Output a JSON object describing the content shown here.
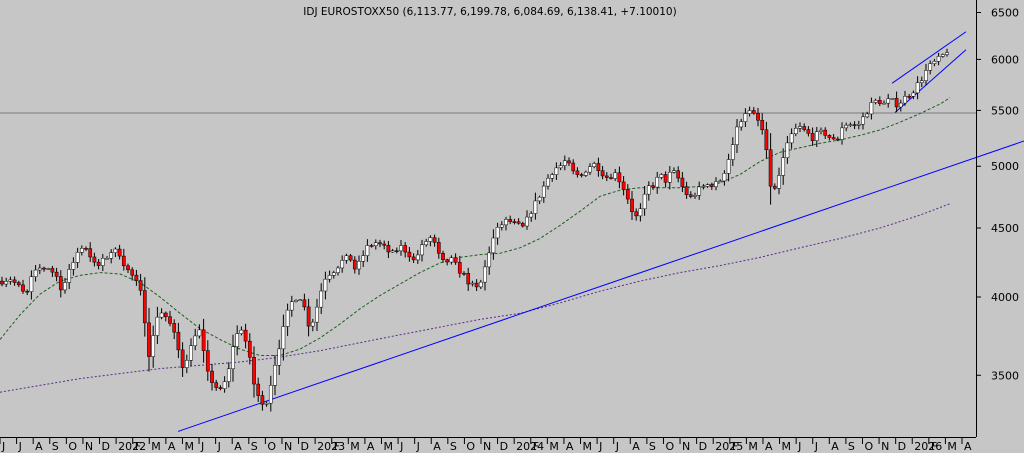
{
  "chart_data": {
    "type": "candlestick",
    "title": "IDJ EUROSTOXX50 (6,113.77, 6,199.78, 6,084.69, 6,138.41, +7.10010)",
    "y_scale": "log",
    "ylim": [
      3150,
      6550
    ],
    "y_ticks": [
      3500,
      4000,
      4500,
      5000,
      5500,
      6000,
      6500
    ],
    "x_axis_labels": [
      "J",
      "J",
      "A",
      "S",
      "O",
      "N",
      "D",
      "2022",
      "F",
      "M",
      "A",
      "M",
      "J",
      "J",
      "A",
      "S",
      "O",
      "N",
      "D",
      "2023",
      "F",
      "M",
      "A",
      "M",
      "J",
      "J",
      "A",
      "S",
      "O",
      "N",
      "D",
      "2024",
      "F",
      "M",
      "A",
      "M",
      "J",
      "J",
      "A",
      "S",
      "O",
      "N",
      "D",
      "2025",
      "F",
      "M",
      "A",
      "M",
      "J",
      "J",
      "A",
      "S",
      "O",
      "N",
      "D",
      "2026",
      "F",
      "M",
      "A"
    ],
    "colors": {
      "background": "#c6c6c6",
      "up_candle_body": "#ffffff",
      "down_candle_body": "#ff0000",
      "wick": "#000000",
      "trend_lines": "#0000ff",
      "ma_short": "#1e5f1e",
      "ma_long": "#5a2a8a",
      "reference_line": "#7a7a7a"
    },
    "reference_level": 5475,
    "price_path": [
      [
        0,
        4110
      ],
      [
        10,
        4130
      ],
      [
        20,
        4060
      ],
      [
        26,
        4000
      ],
      [
        32,
        4140
      ],
      [
        40,
        4200
      ],
      [
        48,
        4210
      ],
      [
        56,
        4150
      ],
      [
        62,
        4050
      ],
      [
        68,
        4150
      ],
      [
        76,
        4300
      ],
      [
        84,
        4380
      ],
      [
        90,
        4300
      ],
      [
        96,
        4200
      ],
      [
        104,
        4260
      ],
      [
        112,
        4330
      ],
      [
        120,
        4310
      ],
      [
        126,
        4200
      ],
      [
        132,
        4150
      ],
      [
        140,
        4050
      ],
      [
        146,
        3800
      ],
      [
        150,
        3580
      ],
      [
        156,
        3870
      ],
      [
        162,
        3900
      ],
      [
        168,
        3850
      ],
      [
        176,
        3720
      ],
      [
        182,
        3550
      ],
      [
        190,
        3650
      ],
      [
        198,
        3820
      ],
      [
        204,
        3620
      ],
      [
        208,
        3500
      ],
      [
        214,
        3450
      ],
      [
        220,
        3400
      ],
      [
        228,
        3500
      ],
      [
        234,
        3720
      ],
      [
        242,
        3800
      ],
      [
        248,
        3650
      ],
      [
        254,
        3450
      ],
      [
        260,
        3350
      ],
      [
        264,
        3300
      ],
      [
        270,
        3430
      ],
      [
        276,
        3600
      ],
      [
        282,
        3750
      ],
      [
        288,
        3900
      ],
      [
        294,
        4000
      ],
      [
        302,
        4000
      ],
      [
        308,
        3820
      ],
      [
        314,
        3850
      ],
      [
        320,
        4020
      ],
      [
        326,
        4150
      ],
      [
        334,
        4190
      ],
      [
        342,
        4250
      ],
      [
        350,
        4280
      ],
      [
        356,
        4180
      ],
      [
        362,
        4280
      ],
      [
        368,
        4360
      ],
      [
        376,
        4390
      ],
      [
        384,
        4350
      ],
      [
        392,
        4300
      ],
      [
        400,
        4360
      ],
      [
        408,
        4320
      ],
      [
        414,
        4250
      ],
      [
        420,
        4330
      ],
      [
        426,
        4400
      ],
      [
        432,
        4430
      ],
      [
        438,
        4300
      ],
      [
        444,
        4230
      ],
      [
        450,
        4270
      ],
      [
        458,
        4200
      ],
      [
        464,
        4150
      ],
      [
        470,
        4090
      ],
      [
        476,
        4050
      ],
      [
        482,
        4110
      ],
      [
        488,
        4300
      ],
      [
        494,
        4430
      ],
      [
        500,
        4520
      ],
      [
        508,
        4560
      ],
      [
        516,
        4520
      ],
      [
        524,
        4500
      ],
      [
        530,
        4620
      ],
      [
        536,
        4700
      ],
      [
        542,
        4800
      ],
      [
        548,
        4900
      ],
      [
        554,
        4980
      ],
      [
        560,
        5000
      ],
      [
        566,
        5050
      ],
      [
        572,
        4950
      ],
      [
        580,
        4900
      ],
      [
        588,
        5000
      ],
      [
        596,
        5020
      ],
      [
        602,
        4950
      ],
      [
        608,
        4900
      ],
      [
        614,
        4950
      ],
      [
        620,
        4880
      ],
      [
        626,
        4780
      ],
      [
        632,
        4640
      ],
      [
        638,
        4560
      ],
      [
        642,
        4680
      ],
      [
        648,
        4820
      ],
      [
        654,
        4850
      ],
      [
        660,
        4920
      ],
      [
        666,
        4880
      ],
      [
        672,
        4960
      ],
      [
        678,
        4900
      ],
      [
        684,
        4800
      ],
      [
        690,
        4730
      ],
      [
        696,
        4780
      ],
      [
        702,
        4820
      ],
      [
        710,
        4850
      ],
      [
        716,
        4850
      ],
      [
        722,
        4900
      ],
      [
        730,
        5100
      ],
      [
        736,
        5300
      ],
      [
        740,
        5400
      ],
      [
        746,
        5500
      ],
      [
        752,
        5470
      ],
      [
        758,
        5400
      ],
      [
        764,
        5280
      ],
      [
        768,
        5000
      ],
      [
        772,
        4760
      ],
      [
        776,
        4820
      ],
      [
        782,
        5020
      ],
      [
        790,
        5250
      ],
      [
        798,
        5350
      ],
      [
        806,
        5300
      ],
      [
        812,
        5250
      ],
      [
        818,
        5280
      ],
      [
        824,
        5300
      ],
      [
        830,
        5250
      ],
      [
        836,
        5200
      ],
      [
        842,
        5350
      ],
      [
        848,
        5380
      ],
      [
        854,
        5350
      ],
      [
        860,
        5380
      ],
      [
        866,
        5480
      ],
      [
        872,
        5560
      ],
      [
        878,
        5600
      ],
      [
        884,
        5560
      ],
      [
        890,
        5600
      ],
      [
        896,
        5560
      ],
      [
        902,
        5590
      ],
      [
        908,
        5650
      ],
      [
        914,
        5700
      ],
      [
        920,
        5780
      ],
      [
        926,
        5880
      ],
      [
        932,
        5950
      ],
      [
        938,
        5990
      ],
      [
        944,
        6050
      ],
      [
        950,
        6138
      ]
    ],
    "ma_short_path": [
      [
        0,
        3720
      ],
      [
        20,
        3880
      ],
      [
        40,
        4020
      ],
      [
        60,
        4110
      ],
      [
        80,
        4150
      ],
      [
        100,
        4170
      ],
      [
        120,
        4160
      ],
      [
        140,
        4100
      ],
      [
        160,
        4000
      ],
      [
        180,
        3890
      ],
      [
        200,
        3790
      ],
      [
        220,
        3720
      ],
      [
        240,
        3660
      ],
      [
        260,
        3620
      ],
      [
        280,
        3620
      ],
      [
        300,
        3660
      ],
      [
        320,
        3730
      ],
      [
        340,
        3820
      ],
      [
        360,
        3920
      ],
      [
        380,
        4010
      ],
      [
        400,
        4090
      ],
      [
        420,
        4170
      ],
      [
        440,
        4240
      ],
      [
        460,
        4280
      ],
      [
        480,
        4300
      ],
      [
        500,
        4310
      ],
      [
        520,
        4350
      ],
      [
        540,
        4420
      ],
      [
        560,
        4520
      ],
      [
        580,
        4630
      ],
      [
        600,
        4750
      ],
      [
        620,
        4800
      ],
      [
        640,
        4820
      ],
      [
        660,
        4820
      ],
      [
        680,
        4820
      ],
      [
        700,
        4830
      ],
      [
        720,
        4860
      ],
      [
        740,
        4930
      ],
      [
        760,
        5040
      ],
      [
        780,
        5120
      ],
      [
        800,
        5160
      ],
      [
        820,
        5200
      ],
      [
        840,
        5230
      ],
      [
        860,
        5270
      ],
      [
        880,
        5320
      ],
      [
        900,
        5390
      ],
      [
        920,
        5470
      ],
      [
        940,
        5560
      ],
      [
        950,
        5620
      ]
    ],
    "ma_long_path": [
      [
        0,
        3400
      ],
      [
        40,
        3440
      ],
      [
        80,
        3480
      ],
      [
        120,
        3510
      ],
      [
        160,
        3540
      ],
      [
        200,
        3560
      ],
      [
        240,
        3580
      ],
      [
        280,
        3610
      ],
      [
        320,
        3650
      ],
      [
        360,
        3700
      ],
      [
        400,
        3750
      ],
      [
        440,
        3800
      ],
      [
        480,
        3850
      ],
      [
        520,
        3890
      ],
      [
        560,
        3960
      ],
      [
        600,
        4040
      ],
      [
        640,
        4110
      ],
      [
        680,
        4170
      ],
      [
        720,
        4220
      ],
      [
        760,
        4280
      ],
      [
        800,
        4350
      ],
      [
        840,
        4420
      ],
      [
        880,
        4500
      ],
      [
        920,
        4600
      ],
      [
        950,
        4690
      ]
    ],
    "support_line": {
      "from": [
        178,
        3180
      ],
      "to": [
        1024,
        5220
      ]
    },
    "channel_upper": {
      "from": [
        892,
        5760
      ],
      "to": [
        966,
        6290
      ]
    },
    "channel_lower": {
      "from": [
        895,
        5480
      ],
      "to": [
        966,
        6100
      ]
    }
  }
}
